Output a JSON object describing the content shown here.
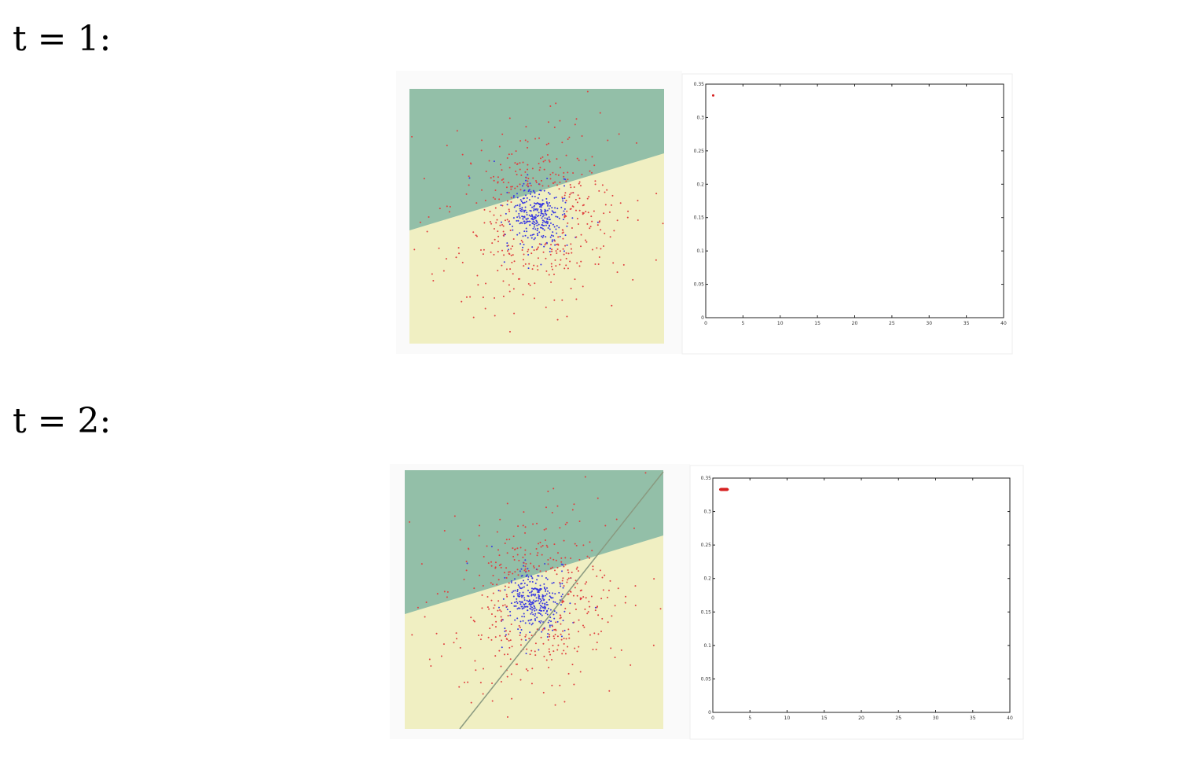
{
  "labels": [
    "t = 1:",
    "t = 2:"
  ],
  "chart_data": [
    {
      "type": "line",
      "x": [
        1
      ],
      "series": [
        {
          "color": "#d62020",
          "values": [
            0.333
          ]
        }
      ],
      "xlim": [
        0,
        40
      ],
      "xticks": [
        0,
        5,
        10,
        15,
        20,
        25,
        30,
        35,
        40
      ],
      "ylim": [
        0,
        0.35
      ],
      "yticks": [
        0,
        0.05,
        0.1,
        0.15,
        0.2,
        0.25,
        0.3,
        0.35
      ]
    },
    {
      "type": "line",
      "x": [
        1,
        2
      ],
      "series": [
        {
          "color": "#d62020",
          "values": [
            0.333,
            0.333
          ]
        }
      ],
      "xlim": [
        0,
        40
      ],
      "xticks": [
        0,
        5,
        10,
        15,
        20,
        25,
        30,
        35,
        40
      ],
      "ylim": [
        0,
        0.35
      ],
      "yticks": [
        0,
        0.05,
        0.1,
        0.15,
        0.2,
        0.25,
        0.3,
        0.35
      ]
    }
  ]
}
